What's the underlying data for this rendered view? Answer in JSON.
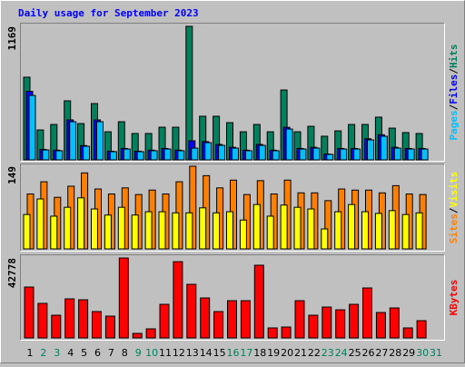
{
  "chart_data": [
    {
      "type": "bar",
      "title": "Daily usage for September 2023",
      "legend_separator": "/",
      "ylim": [
        0,
        1169
      ],
      "yticks": [
        1169
      ],
      "series": [
        {
          "name": "Hits",
          "color": "#00805c",
          "values": [
            724,
            262,
            310,
            517,
            318,
            493,
            246,
            334,
            231,
            231,
            286,
            286,
            1169,
            382,
            382,
            326,
            246,
            310,
            246,
            612,
            246,
            294,
            207,
            254,
            310,
            310,
            374,
            278,
            239,
            231,
            0
          ]
        },
        {
          "name": "Files",
          "color": "#0000ff",
          "values": [
            600,
            92,
            85,
            350,
            125,
            350,
            76,
            100,
            76,
            85,
            100,
            85,
            167,
            160,
            135,
            110,
            85,
            135,
            85,
            285,
            100,
            110,
            51,
            100,
            100,
            185,
            220,
            110,
            100,
            100,
            0
          ]
        },
        {
          "name": "Pages",
          "color": "#00c0ff",
          "values": [
            564,
            87,
            80,
            334,
            119,
            334,
            72,
            95,
            72,
            80,
            95,
            80,
            103,
            151,
            127,
            103,
            80,
            127,
            80,
            270,
            95,
            103,
            48,
            95,
            95,
            175,
            207,
            103,
            95,
            95,
            0
          ]
        }
      ]
    },
    {
      "type": "bar",
      "legend_separator": "/",
      "ylim": [
        0,
        149
      ],
      "yticks": [
        149
      ],
      "series": [
        {
          "name": "Visits",
          "color": "#ffff00",
          "values": [
            62,
            90,
            59,
            75,
            92,
            72,
            61,
            75,
            61,
            67,
            67,
            65,
            65,
            74,
            65,
            67,
            52,
            80,
            59,
            79,
            75,
            72,
            36,
            67,
            80,
            67,
            64,
            69,
            62,
            65,
            0
          ]
        },
        {
          "name": "Sites",
          "color": "#ff8000",
          "values": [
            99,
            121,
            93,
            113,
            137,
            108,
            99,
            110,
            98,
            106,
            99,
            121,
            149,
            132,
            110,
            124,
            98,
            123,
            99,
            124,
            101,
            101,
            87,
            108,
            106,
            106,
            101,
            114,
            99,
            98,
            0
          ]
        }
      ]
    },
    {
      "type": "bar",
      "ylim": [
        0,
        42778
      ],
      "yticks": [
        42778
      ],
      "series": [
        {
          "name": "KBytes",
          "color": "#ff0000",
          "values": [
            27216,
            18470,
            12150,
            20900,
            20410,
            14100,
            11660,
            42778,
            2430,
            4860,
            17980,
            40800,
            28680,
            21390,
            14100,
            19930,
            19930,
            38900,
            5350,
            5830,
            19930,
            12150,
            16520,
            15060,
            17980,
            26730,
            13610,
            16040,
            5350,
            9240,
            0
          ]
        }
      ],
      "categories": [
        "1",
        "2",
        "3",
        "4",
        "5",
        "6",
        "7",
        "8",
        "9",
        "10",
        "11",
        "12",
        "13",
        "14",
        "15",
        "16",
        "17",
        "18",
        "19",
        "20",
        "21",
        "22",
        "23",
        "24",
        "25",
        "26",
        "27",
        "28",
        "29",
        "30",
        "31"
      ],
      "category_colors": [
        "#000000",
        "#00805c",
        "#00805c",
        "#000000",
        "#000000",
        "#000000",
        "#000000",
        "#000000",
        "#00805c",
        "#00805c",
        "#000000",
        "#000000",
        "#000000",
        "#000000",
        "#000000",
        "#00805c",
        "#00805c",
        "#000000",
        "#000000",
        "#000000",
        "#000000",
        "#000000",
        "#00805c",
        "#00805c",
        "#000000",
        "#000000",
        "#000000",
        "#000000",
        "#000000",
        "#00805c",
        "#00805c"
      ]
    }
  ]
}
